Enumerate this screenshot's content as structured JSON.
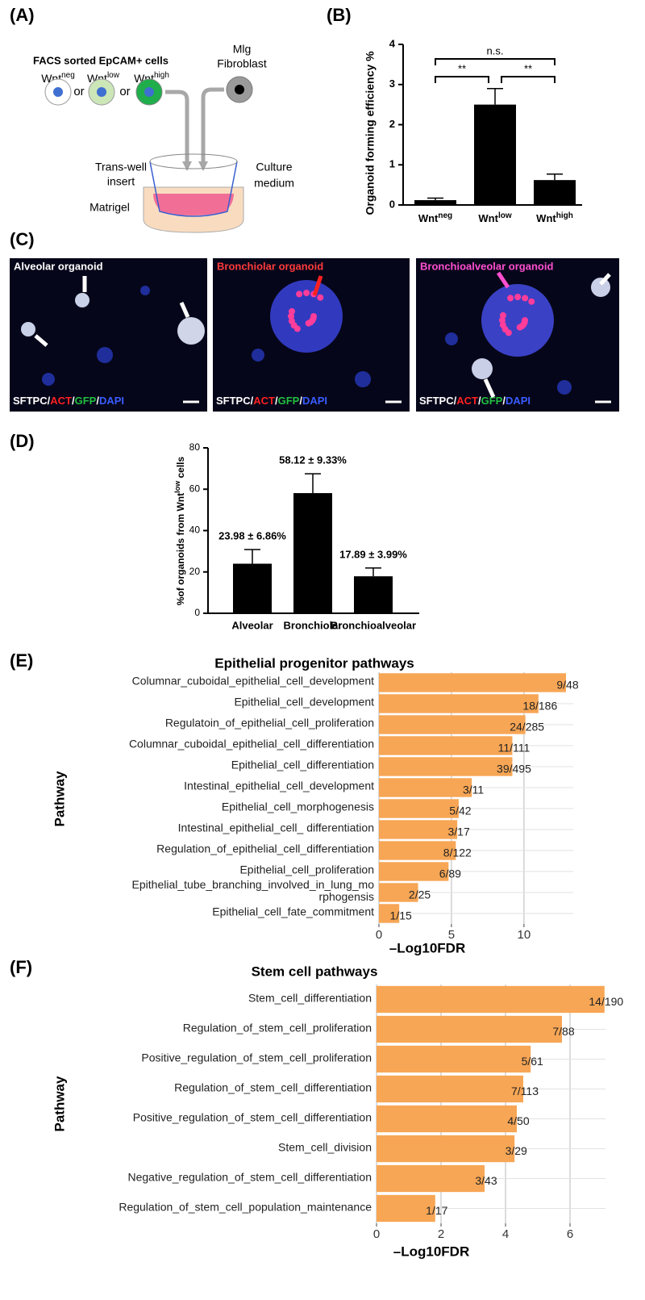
{
  "panel_labels": [
    "(A)",
    "(B)",
    "(C)",
    "(D)",
    "(E)",
    "(F)"
  ],
  "schematic": {
    "heading": "FACS sorted EpCAM+ cells",
    "cells": [
      [
        "Wnt",
        "neg"
      ],
      [
        "Wnt",
        "low"
      ],
      [
        "Wnt",
        "high"
      ]
    ],
    "or": "or",
    "fibroblast": [
      "Mlg",
      "Fibroblast"
    ],
    "insert": [
      "Trans-well",
      "insert"
    ],
    "medium": [
      "Culture",
      "medium"
    ],
    "matrigel": "Matrigel"
  },
  "micrographs": [
    {
      "title": "Alveolar organoid",
      "color": "#ffffff"
    },
    {
      "title": "Bronchiolar organoid",
      "color": "#ff3b3b"
    },
    {
      "title": "Bronchioalveolar organoid",
      "color": "#ff4fd0"
    }
  ],
  "micrograph_stain": [
    {
      "text": "SFTPC/",
      "color": "#ffffff"
    },
    {
      "text": "ACT",
      "color": "#ff2020"
    },
    {
      "text": "/",
      "color": "#ffffff"
    },
    {
      "text": "GFP",
      "color": "#22c040"
    },
    {
      "text": "/",
      "color": "#ffffff"
    },
    {
      "text": "DAPI",
      "color": "#3a5cff"
    }
  ],
  "chart_data": [
    {
      "type": "bar",
      "ylabel": "Organoid forming efficiency %",
      "categories": [
        [
          "Wnt",
          "neg"
        ],
        [
          "Wnt",
          "low"
        ],
        [
          "Wnt",
          "high"
        ]
      ],
      "values": [
        0.12,
        2.5,
        0.62
      ],
      "errors": [
        0.05,
        0.4,
        0.15
      ],
      "color": "#000000",
      "ylim": [
        0,
        4
      ],
      "yticks": [
        0,
        1,
        2,
        3,
        4
      ],
      "significance": [
        "**",
        "**",
        "n.s."
      ]
    },
    {
      "type": "bar",
      "ylabel": [
        "%of organoids from  Wnt",
        "low",
        " cells"
      ],
      "categories": [
        "Alveolar",
        "Bronchiolar",
        "Bronchioalveolar"
      ],
      "values": [
        23.98,
        58.12,
        17.89
      ],
      "errors": [
        6.86,
        9.33,
        3.99
      ],
      "value_labels": [
        "23.98 ± 6.86%",
        "58.12 ± 9.33%",
        "17.89 ± 3.99%"
      ],
      "color": "#000000",
      "ylim": [
        0,
        80
      ],
      "yticks": [
        0,
        20,
        40,
        60,
        80
      ]
    },
    {
      "type": "hbar",
      "title": "Epithelial progenitor pathways",
      "ylabel": "Pathway",
      "xlabel": "–Log10FDR",
      "categories": [
        "Columnar_cuboidal_epithelial_cell_development",
        "Epithelial_cell_development",
        "Regulatoin_of_epithelial_cell_proliferation",
        "Columnar_cuboidal_epithelial_cell_differentiation",
        "Epithelial_cell_differentiation",
        "Intestinal_epithelial_cell_development",
        "Epithelial_cell_morphogenesis",
        "Intestinal_epithelial_cell_ differentiation",
        "Regulation_of_epithelial_cell_differentiation",
        "Epithelial_cell_proliferation",
        "Epithelial_tube_branching_involved_in_lung_mo\nrphogensis",
        "Epithelial_cell_fate_commitment"
      ],
      "values": [
        12.9,
        11.0,
        10.1,
        9.2,
        9.2,
        6.4,
        5.5,
        5.4,
        5.3,
        4.8,
        2.7,
        1.4
      ],
      "bar_labels": [
        "9/48",
        "18/186",
        "24/285",
        "11/111",
        "39/495",
        "3/11",
        "5/42",
        "3/17",
        "8/122",
        "6/89",
        "2/25",
        "1/15"
      ],
      "color": "#f7a655",
      "xlim": [
        0,
        13.4
      ],
      "xticks": [
        0,
        5,
        10
      ],
      "grid": true
    },
    {
      "type": "hbar",
      "title": "Stem cell pathways",
      "ylabel": "Pathway",
      "xlabel": "–Log10FDR",
      "categories": [
        "Stem_cell_differentiation",
        "Regulation_of_stem_cell_proliferation",
        "Positive_regulation_of_stem_cell_proliferation",
        "Regulation_of_stem_cell_differentiation",
        "Positive_regulation_of_stem_cell_differentiation",
        "Stem_cell_division",
        "Negative_regulation_of_stem_cell_differentiation",
        "Regulation_of_stem_cell_population_maintenance"
      ],
      "values": [
        7.07,
        5.75,
        4.78,
        4.55,
        4.35,
        4.28,
        3.35,
        1.82
      ],
      "bar_labels": [
        "14/190",
        "7/88",
        "5/61",
        "7/113",
        "4/50",
        "3/29",
        "3/43",
        "1/17"
      ],
      "color": "#f7a655",
      "xlim": [
        0,
        7.1
      ],
      "xticks": [
        0,
        2,
        4,
        6
      ],
      "grid": true
    }
  ]
}
